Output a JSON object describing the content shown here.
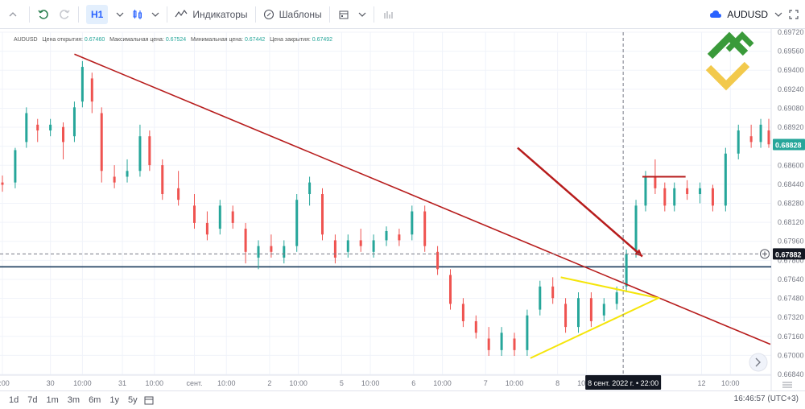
{
  "toolbar": {
    "interval_label": "H1",
    "indicators_label": "Индикаторы",
    "templates_label": "Шаблоны",
    "symbol_label": "AUDUSD"
  },
  "legend": {
    "symbol": "AUDUSD",
    "open_label": "Цена открытия:",
    "open_value": "0.67460",
    "high_label": "Максимальная цена:",
    "high_value": "0.67524",
    "low_label": "Минимальная цена:",
    "low_value": "0.67442",
    "close_label": "Цена закрытия:",
    "close_value": "0.67492"
  },
  "bottom": {
    "ranges": [
      "1d",
      "7d",
      "1m",
      "3m",
      "6m",
      "1y",
      "5y"
    ],
    "time_info": "16:46:57 (UTC+3)"
  },
  "colors": {
    "up": "#26a69a",
    "down": "#ef5350",
    "trendline": "#b71c1c",
    "support": "#1a3a5c",
    "triangle": "#f5e50a",
    "current_price_bg": "#26a69a",
    "crosshair_bg": "#131722"
  },
  "chart_data": {
    "type": "candlestick",
    "symbol": "AUDUSD",
    "ylim": [
      0.6684,
      0.698
    ],
    "y_ticks": [
      "0.69720",
      "0.69560",
      "0.69400",
      "0.69240",
      "0.69080",
      "0.68920",
      "0.68760",
      "0.68600",
      "0.68440",
      "0.68280",
      "0.68120",
      "0.67960",
      "0.67800",
      "0.67640",
      "0.67480",
      "0.67320",
      "0.67160",
      "0.67000",
      "0.66840"
    ],
    "x_ticks": [
      "0:00",
      "30",
      "10:00",
      "31",
      "10:00",
      "сент.",
      "10:00",
      "2",
      "10:00",
      "5",
      "10:00",
      "6",
      "10:00",
      "7",
      "10:00",
      "8",
      "10:00",
      "12",
      "10:00"
    ],
    "x_index": [
      0,
      30,
      50,
      75,
      95,
      120,
      140,
      167,
      185,
      212,
      230,
      257,
      275,
      302,
      320,
      347,
      365,
      437,
      455
    ],
    "n_bars": 480,
    "current_price": "0.68828",
    "crosshair_price": "0.67882",
    "crosshair_time": "8 сент. 2022 г. • 22:00",
    "crosshair_index": 388,
    "support_level": 0.6777,
    "horizontal_segment": {
      "from": 400,
      "to": 427,
      "price": 0.6855
    },
    "trendline": {
      "from": [
        45,
        0.6961
      ],
      "to": [
        480,
        0.671
      ]
    },
    "triangle": [
      [
        349,
        0.6768
      ],
      [
        410,
        0.675
      ],
      [
        330,
        0.6698
      ]
    ],
    "arrow": {
      "from": [
        322,
        0.688
      ],
      "to": [
        400,
        0.6786
      ]
    },
    "candles": [
      {
        "i": 0,
        "o": 0.685,
        "h": 0.6856,
        "l": 0.6842,
        "c": 0.6848
      },
      {
        "i": 8,
        "o": 0.685,
        "h": 0.688,
        "l": 0.6845,
        "c": 0.6878
      },
      {
        "i": 15,
        "o": 0.6885,
        "h": 0.6915,
        "l": 0.688,
        "c": 0.691
      },
      {
        "i": 22,
        "o": 0.69,
        "h": 0.6905,
        "l": 0.6885,
        "c": 0.6895
      },
      {
        "i": 30,
        "o": 0.6895,
        "h": 0.6905,
        "l": 0.689,
        "c": 0.69
      },
      {
        "i": 38,
        "o": 0.6898,
        "h": 0.6902,
        "l": 0.687,
        "c": 0.6885
      },
      {
        "i": 45,
        "o": 0.689,
        "h": 0.692,
        "l": 0.6885,
        "c": 0.6915
      },
      {
        "i": 50,
        "o": 0.692,
        "h": 0.6955,
        "l": 0.6915,
        "c": 0.695
      },
      {
        "i": 56,
        "o": 0.694,
        "h": 0.6945,
        "l": 0.691,
        "c": 0.692
      },
      {
        "i": 62,
        "o": 0.691,
        "h": 0.6915,
        "l": 0.685,
        "c": 0.686
      },
      {
        "i": 70,
        "o": 0.6855,
        "h": 0.6865,
        "l": 0.6845,
        "c": 0.685
      },
      {
        "i": 78,
        "o": 0.6855,
        "h": 0.687,
        "l": 0.685,
        "c": 0.686
      },
      {
        "i": 86,
        "o": 0.686,
        "h": 0.69,
        "l": 0.6855,
        "c": 0.689
      },
      {
        "i": 92,
        "o": 0.689,
        "h": 0.6895,
        "l": 0.686,
        "c": 0.6865
      },
      {
        "i": 100,
        "o": 0.6865,
        "h": 0.687,
        "l": 0.6835,
        "c": 0.684
      },
      {
        "i": 110,
        "o": 0.6845,
        "h": 0.686,
        "l": 0.683,
        "c": 0.6835
      },
      {
        "i": 120,
        "o": 0.683,
        "h": 0.684,
        "l": 0.681,
        "c": 0.6815
      },
      {
        "i": 128,
        "o": 0.6815,
        "h": 0.6825,
        "l": 0.68,
        "c": 0.6805
      },
      {
        "i": 136,
        "o": 0.681,
        "h": 0.6835,
        "l": 0.6805,
        "c": 0.683
      },
      {
        "i": 144,
        "o": 0.6825,
        "h": 0.683,
        "l": 0.681,
        "c": 0.6815
      },
      {
        "i": 152,
        "o": 0.681,
        "h": 0.6815,
        "l": 0.678,
        "c": 0.679
      },
      {
        "i": 160,
        "o": 0.6785,
        "h": 0.68,
        "l": 0.6775,
        "c": 0.6795
      },
      {
        "i": 168,
        "o": 0.6795,
        "h": 0.6805,
        "l": 0.6785,
        "c": 0.679
      },
      {
        "i": 176,
        "o": 0.6785,
        "h": 0.68,
        "l": 0.678,
        "c": 0.6795
      },
      {
        "i": 184,
        "o": 0.6795,
        "h": 0.684,
        "l": 0.679,
        "c": 0.6835
      },
      {
        "i": 192,
        "o": 0.684,
        "h": 0.6855,
        "l": 0.683,
        "c": 0.685
      },
      {
        "i": 200,
        "o": 0.684,
        "h": 0.6845,
        "l": 0.68,
        "c": 0.6805
      },
      {
        "i": 208,
        "o": 0.68,
        "h": 0.6805,
        "l": 0.678,
        "c": 0.6785
      },
      {
        "i": 216,
        "o": 0.679,
        "h": 0.6805,
        "l": 0.6785,
        "c": 0.68
      },
      {
        "i": 224,
        "o": 0.68,
        "h": 0.681,
        "l": 0.679,
        "c": 0.6795
      },
      {
        "i": 232,
        "o": 0.679,
        "h": 0.6805,
        "l": 0.6785,
        "c": 0.68
      },
      {
        "i": 240,
        "o": 0.68,
        "h": 0.6812,
        "l": 0.6795,
        "c": 0.6808
      },
      {
        "i": 248,
        "o": 0.6805,
        "h": 0.681,
        "l": 0.6795,
        "c": 0.68
      },
      {
        "i": 256,
        "o": 0.6805,
        "h": 0.683,
        "l": 0.68,
        "c": 0.6825
      },
      {
        "i": 264,
        "o": 0.6825,
        "h": 0.683,
        "l": 0.679,
        "c": 0.6795
      },
      {
        "i": 272,
        "o": 0.679,
        "h": 0.6795,
        "l": 0.677,
        "c": 0.6775
      },
      {
        "i": 280,
        "o": 0.677,
        "h": 0.6775,
        "l": 0.674,
        "c": 0.6745
      },
      {
        "i": 288,
        "o": 0.6745,
        "h": 0.675,
        "l": 0.6725,
        "c": 0.673
      },
      {
        "i": 296,
        "o": 0.673,
        "h": 0.6735,
        "l": 0.6715,
        "c": 0.672
      },
      {
        "i": 304,
        "o": 0.6715,
        "h": 0.6725,
        "l": 0.67,
        "c": 0.6705
      },
      {
        "i": 312,
        "o": 0.6705,
        "h": 0.6725,
        "l": 0.67,
        "c": 0.672
      },
      {
        "i": 320,
        "o": 0.6715,
        "h": 0.672,
        "l": 0.67,
        "c": 0.6705
      },
      {
        "i": 328,
        "o": 0.6705,
        "h": 0.674,
        "l": 0.67,
        "c": 0.6735
      },
      {
        "i": 336,
        "o": 0.674,
        "h": 0.6765,
        "l": 0.6735,
        "c": 0.676
      },
      {
        "i": 344,
        "o": 0.676,
        "h": 0.6768,
        "l": 0.6745,
        "c": 0.675
      },
      {
        "i": 352,
        "o": 0.6745,
        "h": 0.675,
        "l": 0.672,
        "c": 0.6725
      },
      {
        "i": 360,
        "o": 0.6725,
        "h": 0.6755,
        "l": 0.672,
        "c": 0.675
      },
      {
        "i": 368,
        "o": 0.675,
        "h": 0.6755,
        "l": 0.6725,
        "c": 0.673
      },
      {
        "i": 376,
        "o": 0.6735,
        "h": 0.675,
        "l": 0.673,
        "c": 0.6745
      },
      {
        "i": 384,
        "o": 0.6745,
        "h": 0.676,
        "l": 0.674,
        "c": 0.6755
      },
      {
        "i": 390,
        "o": 0.676,
        "h": 0.6792,
        "l": 0.6755,
        "c": 0.6788
      },
      {
        "i": 396,
        "o": 0.679,
        "h": 0.6835,
        "l": 0.6785,
        "c": 0.683
      },
      {
        "i": 402,
        "o": 0.683,
        "h": 0.686,
        "l": 0.6825,
        "c": 0.6855
      },
      {
        "i": 408,
        "o": 0.6855,
        "h": 0.687,
        "l": 0.684,
        "c": 0.6845
      },
      {
        "i": 414,
        "o": 0.6845,
        "h": 0.685,
        "l": 0.6825,
        "c": 0.683
      },
      {
        "i": 420,
        "o": 0.683,
        "h": 0.685,
        "l": 0.6825,
        "c": 0.6845
      },
      {
        "i": 428,
        "o": 0.6845,
        "h": 0.6852,
        "l": 0.6835,
        "c": 0.684
      },
      {
        "i": 436,
        "o": 0.684,
        "h": 0.685,
        "l": 0.6832,
        "c": 0.6845
      },
      {
        "i": 444,
        "o": 0.6845,
        "h": 0.6848,
        "l": 0.6825,
        "c": 0.683
      },
      {
        "i": 452,
        "o": 0.683,
        "h": 0.688,
        "l": 0.6825,
        "c": 0.6875
      },
      {
        "i": 460,
        "o": 0.6875,
        "h": 0.69,
        "l": 0.687,
        "c": 0.6895
      },
      {
        "i": 468,
        "o": 0.689,
        "h": 0.69,
        "l": 0.688,
        "c": 0.6885
      },
      {
        "i": 474,
        "o": 0.6885,
        "h": 0.6905,
        "l": 0.688,
        "c": 0.69
      },
      {
        "i": 479,
        "o": 0.6895,
        "h": 0.6905,
        "l": 0.688,
        "c": 0.6883
      }
    ]
  }
}
